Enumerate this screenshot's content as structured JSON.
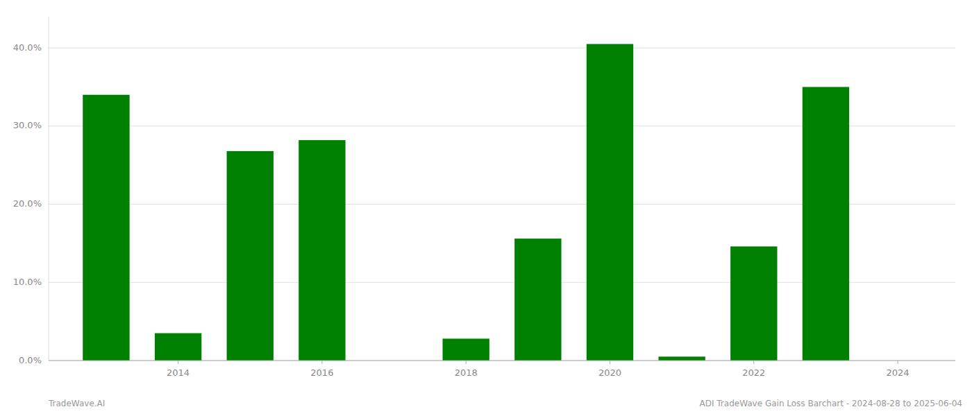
{
  "chart_data": {
    "type": "bar",
    "x": [
      2013,
      2014,
      2015,
      2016,
      2017,
      2018,
      2019,
      2020,
      2021,
      2022,
      2023
    ],
    "values": [
      0.34,
      0.035,
      0.268,
      0.282,
      null,
      0.028,
      0.156,
      0.405,
      0.005,
      0.146,
      0.35
    ],
    "color": "#008000",
    "xlim": [
      2012.2,
      2024.8
    ],
    "xticks": [
      2014,
      2016,
      2018,
      2020,
      2022,
      2024
    ],
    "ylim": [
      0,
      0.44
    ],
    "yticks": [
      {
        "value": 0.0,
        "label": "0.0%"
      },
      {
        "value": 0.1,
        "label": "10.0%"
      },
      {
        "value": 0.2,
        "label": "20.0%"
      },
      {
        "value": 0.3,
        "label": "30.0%"
      },
      {
        "value": 0.4,
        "label": "40.0%"
      }
    ],
    "grid": true,
    "annotations": [
      "TradeWave.AI",
      "ADI TradeWave Gain Loss Barchart - 2024-08-28 to 2025-06-04"
    ]
  }
}
